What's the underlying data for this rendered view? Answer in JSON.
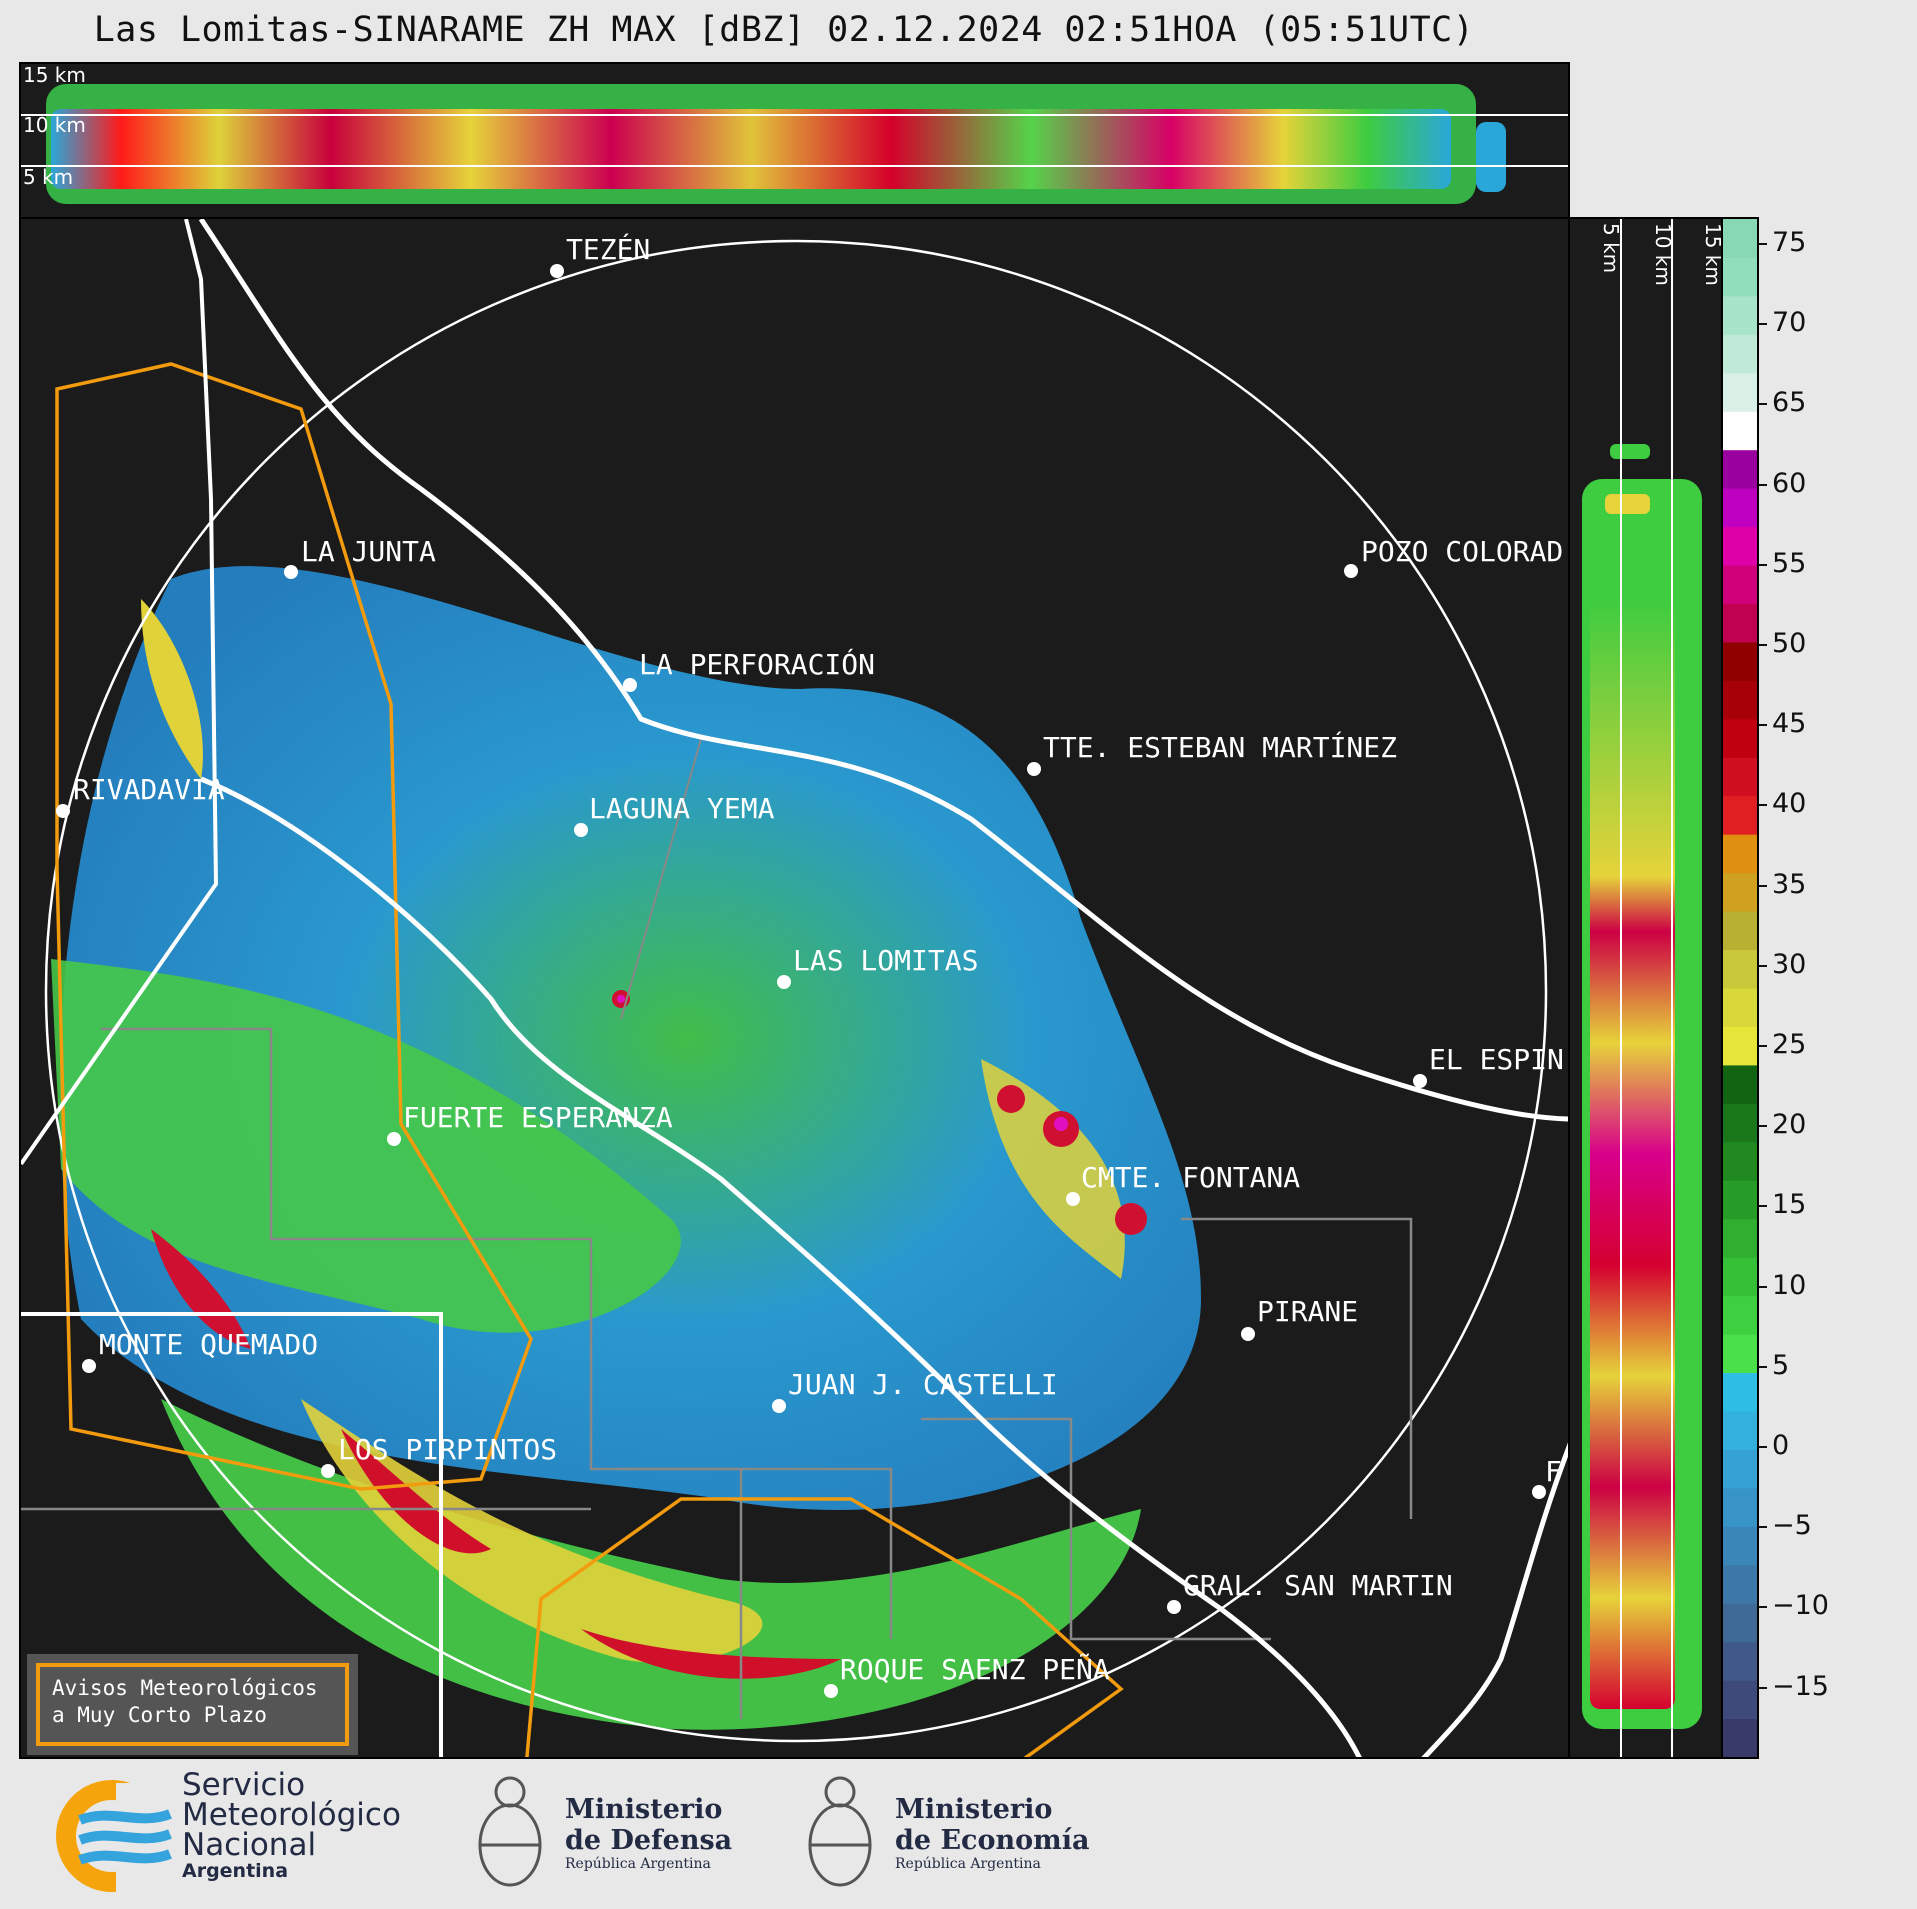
{
  "title": "Las Lomitas-SINARAME ZH MAX [dBZ] 02.12.2024 02:51HOA (05:51UTC)",
  "height_labels": [
    "15 km",
    "10 km",
    "5 km"
  ],
  "towns": [
    {
      "name": "TEZÉN"
    },
    {
      "name": "LA JUNTA"
    },
    {
      "name": "POZO COLORAD"
    },
    {
      "name": "LA PERFORACIÓN"
    },
    {
      "name": "TTE. ESTEBAN MARTÍNEZ"
    },
    {
      "name": "RIVADAVIA"
    },
    {
      "name": "LAGUNA YEMA"
    },
    {
      "name": "LAS LOMITAS"
    },
    {
      "name": "EL ESPIN"
    },
    {
      "name": "FUERTE ESPERANZA"
    },
    {
      "name": "CMTE. FONTANA"
    },
    {
      "name": "PIRANE"
    },
    {
      "name": "MONTE QUEMADO"
    },
    {
      "name": "JUAN J. CASTELLI"
    },
    {
      "name": "LOS PIRPINTOS"
    },
    {
      "name": "GRAL. SAN MARTIN"
    },
    {
      "name": "ROQUE SAENZ PEÑA"
    },
    {
      "name": "F"
    }
  ],
  "colorbar": {
    "unit": "dBZ",
    "ticks": [
      "75",
      "70",
      "65",
      "60",
      "55",
      "50",
      "45",
      "40",
      "35",
      "30",
      "25",
      "20",
      "15",
      "10",
      "5",
      "0",
      "−5",
      "−10",
      "−15"
    ]
  },
  "avisos": {
    "line1": "Avisos Meteorológicos",
    "line2": "a Muy Corto Plazo"
  },
  "logos": {
    "smn": {
      "l1": "Servicio",
      "l2": "Meteorológico",
      "l3": "Nacional",
      "l4": "Argentina"
    },
    "defensa": {
      "l1": "Ministerio",
      "l2": "de Defensa",
      "l3": "República Argentina"
    },
    "economia": {
      "l1": "Ministerio",
      "l2": "de Economía",
      "l3": "República Argentina"
    }
  },
  "colors": {
    "accent_orange": "#f29b0e",
    "background": "#1b1b1b",
    "border_white": "#ffffff"
  }
}
